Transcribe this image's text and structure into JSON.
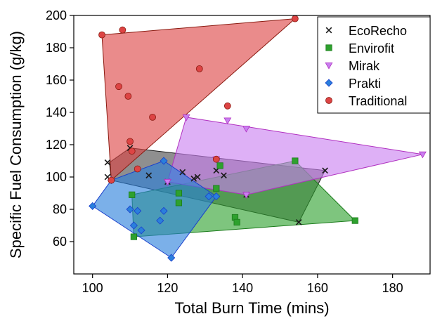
{
  "chart_data": {
    "type": "scatter",
    "xlabel": "Total Burn Time (mins)",
    "ylabel": "Specific Fuel Consumption (g/kg)",
    "xlim": [
      95,
      190
    ],
    "ylim": [
      40,
      200
    ],
    "xticks": [
      100,
      120,
      140,
      160,
      180
    ],
    "yticks": [
      60,
      80,
      100,
      120,
      140,
      160,
      180,
      200
    ],
    "legend_position": "top-right",
    "series": [
      {
        "name": "EcoRecho",
        "marker": "x",
        "color": "#1a1a1a",
        "fill": "#4a4a4a",
        "hull_x": [
          104.5,
          110,
          162,
          155,
          105
        ],
        "hull_y": [
          109,
          118,
          104,
          72,
          98
        ],
        "x": [
          104,
          104,
          110,
          115,
          120,
          124,
          127,
          128,
          133,
          135,
          141,
          155,
          162
        ],
        "y": [
          109,
          100,
          118,
          101,
          97,
          103,
          99,
          100,
          104,
          101,
          89,
          72,
          104
        ]
      },
      {
        "name": "Envirofit",
        "marker": "square",
        "color": "#1a7a1a",
        "fill": "#2ea12e",
        "hull_x": [
          110.5,
          154,
          170,
          111
        ],
        "hull_y": [
          89,
          110,
          73,
          63
        ],
        "x": [
          110.5,
          111,
          123,
          123,
          133,
          134,
          138,
          138.5,
          154,
          170
        ],
        "y": [
          89,
          63,
          90,
          84,
          93,
          107,
          75,
          72,
          110,
          73
        ]
      },
      {
        "name": "Mirak",
        "marker": "triangle-down",
        "color": "#b030c0",
        "fill": "#c97ff0",
        "hull_x": [
          125,
          188,
          141,
          120
        ],
        "hull_y": [
          137,
          114,
          89,
          97
        ],
        "x": [
          120,
          125,
          133,
          136,
          141,
          141,
          188
        ],
        "y": [
          97,
          137,
          111,
          135,
          130,
          89,
          114
        ]
      },
      {
        "name": "Prakti",
        "marker": "diamond",
        "color": "#1a3fcc",
        "fill": "#2a7fdc",
        "hull_x": [
          100,
          105,
          119,
          133,
          121
        ],
        "hull_y": [
          82,
          98,
          110,
          88,
          50
        ],
        "x": [
          100,
          105,
          110,
          111,
          112,
          113,
          118,
          119,
          119,
          121,
          131,
          133
        ],
        "y": [
          82,
          98,
          80,
          70,
          79,
          67,
          73,
          79,
          110,
          50,
          88,
          88
        ]
      },
      {
        "name": "Traditional",
        "marker": "circle",
        "color": "#8a1a10",
        "fill": "#dd4444",
        "hull_x": [
          102.5,
          154,
          105
        ],
        "hull_y": [
          188,
          198,
          98
        ],
        "x": [
          102.5,
          105,
          107,
          108,
          109.5,
          110,
          110.5,
          112,
          116,
          128.5,
          133,
          136,
          154
        ],
        "y": [
          188,
          98,
          156,
          191,
          150,
          122,
          116,
          105,
          137,
          167,
          111,
          144,
          198
        ]
      }
    ]
  }
}
